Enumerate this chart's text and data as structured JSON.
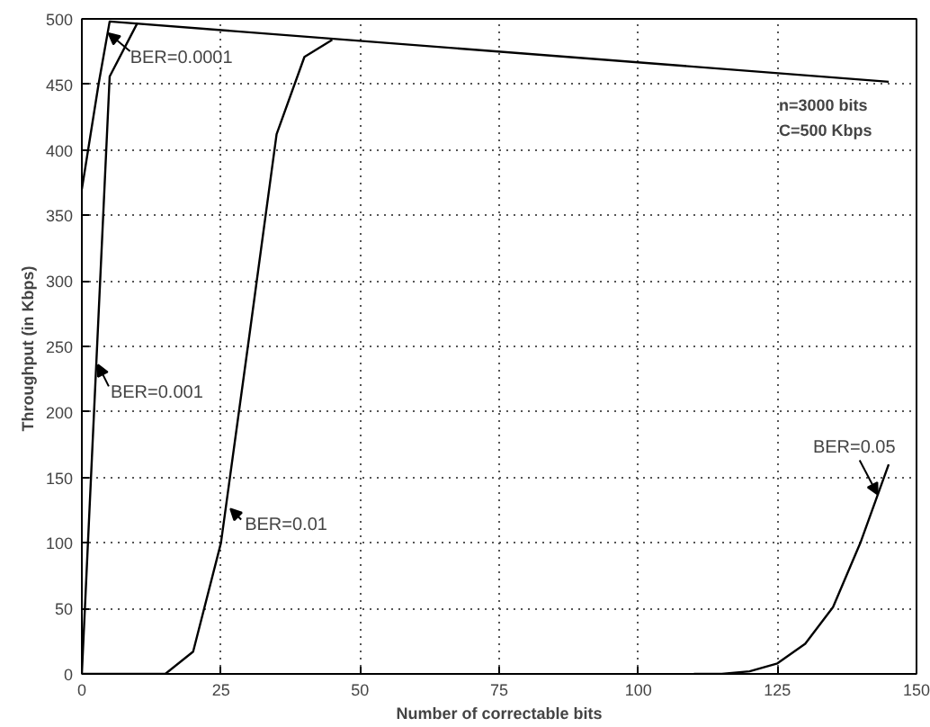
{
  "chart_data": {
    "type": "line",
    "xlabel": "Number of correctable bits",
    "ylabel": "Throughput  (in Kbps)",
    "series": [
      {
        "color": "#000000",
        "x": [
          0,
          3,
          5,
          145
        ],
        "values": [
          370,
          450,
          498,
          452
        ]
      },
      {
        "color": "#000000",
        "x": [
          0,
          5,
          10
        ],
        "values": [
          0,
          456,
          497
        ]
      },
      {
        "color": "#000000",
        "x": [
          0,
          5,
          10,
          15,
          20,
          25,
          30,
          35,
          40,
          45
        ],
        "values": [
          0,
          0,
          0,
          0,
          17,
          100,
          255,
          412,
          471,
          484
        ]
      },
      {
        "color": "#000000",
        "x": [
          110,
          115,
          120,
          125,
          130,
          135,
          140,
          145
        ],
        "values": [
          0,
          0,
          2,
          8,
          23,
          51,
          101,
          160
        ]
      }
    ],
    "annotations": [
      {
        "text": "BER=0.0001",
        "x": 4.8,
        "y": 489
      },
      {
        "text": "BER=0.001",
        "x": 2.9,
        "y": 236
      },
      {
        "text": "BER=0.01",
        "x": 26.7,
        "y": 126
      },
      {
        "text": "BER=0.05",
        "x": 143,
        "y": 137
      },
      "n=3000 bits",
      "C=500 Kbps"
    ],
    "xlim": [
      0,
      150
    ],
    "ylim": [
      0,
      500
    ],
    "xticks": [
      0,
      25,
      50,
      75,
      100,
      125,
      150
    ],
    "yticks": [
      0,
      50,
      100,
      150,
      200,
      250,
      300,
      350,
      400,
      450,
      500
    ],
    "grid": true,
    "marker": "none",
    "line_style": "solid"
  }
}
